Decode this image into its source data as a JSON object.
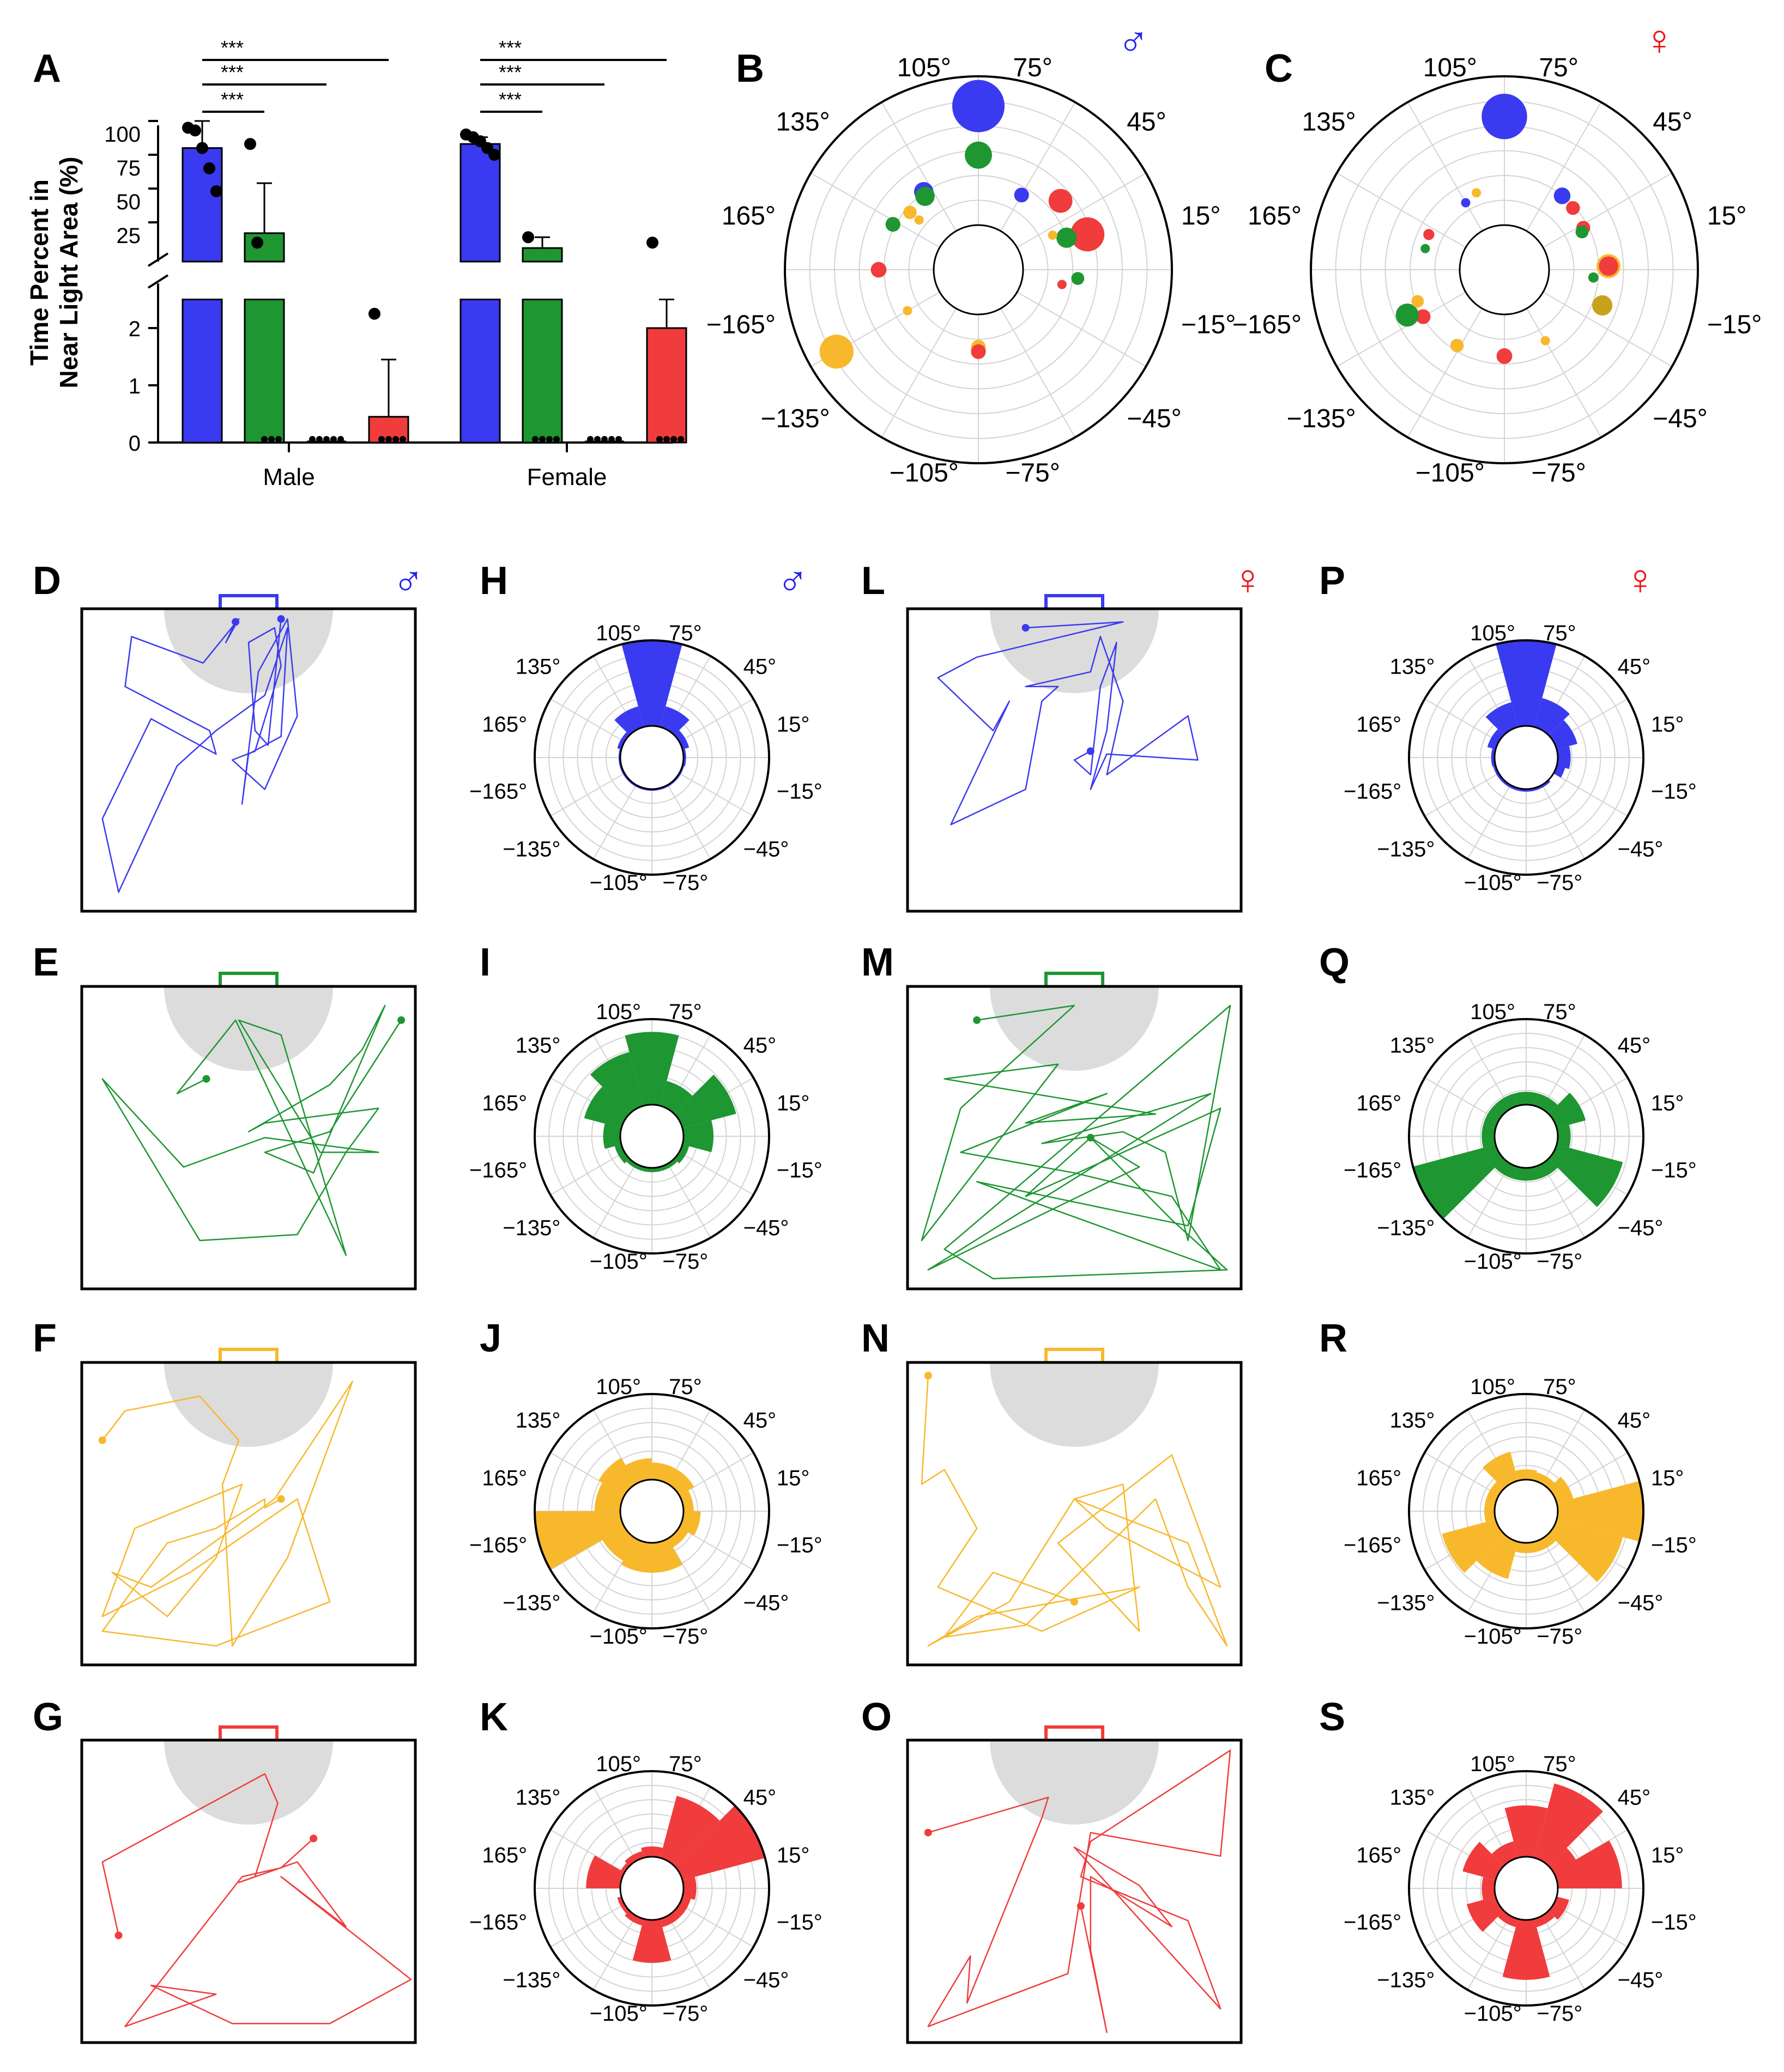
{
  "panel_letters": [
    "A",
    "B",
    "C",
    "D",
    "E",
    "F",
    "G",
    "H",
    "I",
    "J",
    "K",
    "L",
    "M",
    "N",
    "O",
    "P",
    "Q",
    "R",
    "S"
  ],
  "sex_symbols": {
    "male": "♂",
    "female": "♀"
  },
  "colors": {
    "blue": "#3a3af0",
    "green": "#1e9632",
    "orange": "#f8b82c",
    "red": "#f03c3c",
    "gold": "#c9a21c",
    "black": "#000000",
    "grid": "#d4d4d4",
    "shade": "#dcdcdc"
  },
  "polar_labels": [
    "105°",
    "75°",
    "45°",
    "15°",
    "−15°",
    "−45°",
    "−75°",
    "−105°",
    "−135°",
    "−165°",
    "165°",
    "135°"
  ],
  "sig_label": "***",
  "chart_data": [
    {
      "panel": "A",
      "type": "bar",
      "ylabel": "Time Percent in Near Light Area (%)",
      "ylabel_lines": [
        "Time Percent in",
        "Near Light Area (%)"
      ],
      "groups": [
        "Male",
        "Female"
      ],
      "y_upper_ticks": [
        "25",
        "50",
        "75",
        "100"
      ],
      "y_lower_ticks": [
        "0",
        "1",
        "2"
      ],
      "ylim_lower": [
        0,
        2.5
      ],
      "ylim_upper": [
        0,
        105
      ],
      "series": [
        {
          "name": "blue",
          "color": "blue",
          "values": [
            80,
            83
          ],
          "err": [
            20,
            5
          ],
          "points": [
            [
              95,
              93,
              80,
              65,
              48
            ],
            [
              90,
              88,
              85,
              80,
              75
            ]
          ]
        },
        {
          "name": "green",
          "color": "green",
          "values": [
            17,
            6
          ],
          "err": [
            37,
            8
          ],
          "points": [
            [
              83,
              10,
              0,
              0,
              0
            ],
            [
              14,
              0,
              0,
              0,
              0
            ]
          ]
        },
        {
          "name": "orange",
          "color": "orange",
          "values": [
            0,
            0
          ],
          "err": [
            0,
            0
          ],
          "points": [
            [
              0,
              0,
              0,
              0,
              0
            ],
            [
              0,
              0,
              0,
              0,
              0
            ]
          ]
        },
        {
          "name": "red",
          "color": "red",
          "values": [
            0.45,
            2.0
          ],
          "err": [
            1.0,
            0.5
          ],
          "points": [
            [
              2.25,
              0,
              0,
              0,
              0
            ],
            [
              10,
              0,
              0,
              0,
              0
            ]
          ]
        }
      ],
      "significance": [
        {
          "group": 0,
          "from": 0,
          "to": 1,
          "label": "***"
        },
        {
          "group": 0,
          "from": 0,
          "to": 2,
          "label": "***"
        },
        {
          "group": 0,
          "from": 0,
          "to": 3,
          "label": "***"
        },
        {
          "group": 1,
          "from": 0,
          "to": 1,
          "label": "***"
        },
        {
          "group": 1,
          "from": 0,
          "to": 2,
          "label": "***"
        },
        {
          "group": 1,
          "from": 0,
          "to": 3,
          "label": "***"
        }
      ]
    },
    {
      "panel": "B",
      "sex": "male",
      "type": "scatter",
      "description": "polar bubble plot of heading angle vs distance, bubble size = time",
      "points": [
        {
          "angle": 90,
          "r": 0.8,
          "size": 1.0,
          "color": "blue"
        },
        {
          "angle": 90,
          "r": 0.47,
          "size": 0.45,
          "color": "green"
        },
        {
          "angle": 40,
          "r": 0.42,
          "size": 0.38,
          "color": "red"
        },
        {
          "angle": 18,
          "r": 0.47,
          "size": 0.6,
          "color": "red"
        },
        {
          "angle": 20,
          "r": 0.33,
          "size": 0.3,
          "color": "green"
        },
        {
          "angle": 60,
          "r": 0.28,
          "size": 0.18,
          "color": "blue"
        },
        {
          "angle": 125,
          "r": 0.34,
          "size": 0.28,
          "color": "blue"
        },
        {
          "angle": 126,
          "r": 0.31,
          "size": 0.28,
          "color": "green"
        },
        {
          "angle": 140,
          "r": 0.3,
          "size": 0.15,
          "color": "orange"
        },
        {
          "angle": 152,
          "r": 0.35,
          "size": 0.18,
          "color": "green"
        },
        {
          "angle": 180,
          "r": 0.37,
          "size": 0.2,
          "color": "red"
        },
        {
          "angle": -150,
          "r": 0.8,
          "size": 0.6,
          "color": "orange"
        },
        {
          "angle": -90,
          "r": 0.22,
          "size": 0.18,
          "color": "orange"
        },
        {
          "angle": -90,
          "r": 0.25,
          "size": 0.18,
          "color": "red"
        },
        {
          "angle": -5,
          "r": 0.37,
          "size": 0.14,
          "color": "green"
        },
        {
          "angle": 25,
          "r": 0.25,
          "size": 0.06,
          "color": "orange"
        },
        {
          "angle": -10,
          "r": 0.27,
          "size": 0.06,
          "color": "red"
        },
        {
          "angle": 140,
          "r": 0.22,
          "size": 0.06,
          "color": "orange"
        },
        {
          "angle": -150,
          "r": 0.25,
          "size": 0.06,
          "color": "orange"
        }
      ]
    },
    {
      "panel": "C",
      "sex": "female",
      "type": "scatter",
      "description": "polar bubble plot of heading angle vs distance, bubble size = time",
      "points": [
        {
          "angle": 90,
          "r": 0.73,
          "size": 0.85,
          "color": "blue"
        },
        {
          "angle": 52,
          "r": 0.33,
          "size": 0.22,
          "color": "blue"
        },
        {
          "angle": 42,
          "r": 0.32,
          "size": 0.16,
          "color": "red"
        },
        {
          "angle": 28,
          "r": 0.3,
          "size": 0.16,
          "color": "red"
        },
        {
          "angle": 26,
          "r": 0.28,
          "size": 0.14,
          "color": "green"
        },
        {
          "angle": 2,
          "r": 0.4,
          "size": 0.38,
          "color": "orange"
        },
        {
          "angle": 2,
          "r": 0.4,
          "size": 0.28,
          "color": "red"
        },
        {
          "angle": -20,
          "r": 0.4,
          "size": 0.3,
          "color": "gold"
        },
        {
          "angle": -90,
          "r": 0.28,
          "size": 0.2,
          "color": "red"
        },
        {
          "angle": -122,
          "r": 0.3,
          "size": 0.15,
          "color": "orange"
        },
        {
          "angle": -150,
          "r": 0.33,
          "size": 0.18,
          "color": "red"
        },
        {
          "angle": -155,
          "r": 0.42,
          "size": 0.36,
          "color": "green"
        },
        {
          "angle": -160,
          "r": 0.32,
          "size": 0.13,
          "color": "orange"
        },
        {
          "angle": 155,
          "r": 0.26,
          "size": 0.1,
          "color": "red"
        },
        {
          "angle": 120,
          "r": 0.22,
          "size": 0.06,
          "color": "blue"
        },
        {
          "angle": 110,
          "r": 0.25,
          "size": 0.06,
          "color": "orange"
        },
        {
          "angle": 165,
          "r": 0.25,
          "size": 0.06,
          "color": "green"
        },
        {
          "angle": -5,
          "r": 0.3,
          "size": 0.08,
          "color": "green"
        },
        {
          "angle": -60,
          "r": 0.25,
          "size": 0.06,
          "color": "orange"
        }
      ]
    },
    {
      "panel": "H",
      "sex": "male",
      "type": "bar",
      "subtype": "polar-rose",
      "color": "blue",
      "centers": [
        90,
        60,
        120,
        30,
        150,
        0,
        180,
        -30,
        -60,
        -90,
        -120,
        -150
      ],
      "values": [
        1.0,
        0.25,
        0.25,
        0.08,
        0.05,
        0.03,
        0.02,
        0.02,
        0.02,
        0.02,
        0.02,
        0.02
      ]
    },
    {
      "panel": "I",
      "sex": "male",
      "type": "bar",
      "subtype": "polar-rose",
      "color": "green",
      "centers": [
        90,
        120,
        150,
        60,
        30,
        0,
        180,
        -30,
        -60,
        -90,
        -120,
        -150
      ],
      "values": [
        0.85,
        0.65,
        0.45,
        0.3,
        0.65,
        0.35,
        0.2,
        0.08,
        0.05,
        0.05,
        0.05,
        0.08
      ]
    },
    {
      "panel": "J",
      "sex": "male",
      "type": "bar",
      "subtype": "polar-rose",
      "color": "orange",
      "centers": [
        -165,
        -135,
        165,
        135,
        105,
        75,
        45,
        15,
        -15,
        -45,
        -75,
        -105
      ],
      "values": [
        1.0,
        0.3,
        0.3,
        0.35,
        0.25,
        0.2,
        0.2,
        0.12,
        0.2,
        0.12,
        0.35,
        0.35
      ]
    },
    {
      "panel": "K",
      "sex": "male",
      "type": "bar",
      "subtype": "polar-rose",
      "color": "red",
      "centers": [
        30,
        60,
        165,
        -90,
        0,
        90,
        120,
        -60,
        -120,
        -150,
        -30,
        135
      ],
      "values": [
        1.0,
        0.75,
        0.4,
        0.5,
        0.15,
        0.12,
        0.08,
        0.1,
        0.08,
        0.05,
        0.1,
        0.05
      ]
    },
    {
      "panel": "P",
      "sex": "female",
      "type": "bar",
      "subtype": "polar-rose",
      "color": "blue",
      "centers": [
        90,
        60,
        120,
        30,
        150,
        0,
        -15,
        180,
        -60,
        -90,
        -120,
        -150
      ],
      "values": [
        1.0,
        0.35,
        0.3,
        0.25,
        0.1,
        0.15,
        0.1,
        0.04,
        0.03,
        0.03,
        0.03,
        0.03
      ]
    },
    {
      "panel": "Q",
      "sex": "female",
      "type": "bar",
      "subtype": "polar-rose",
      "color": "green",
      "centers": [
        -150,
        -30,
        30,
        90,
        150,
        120,
        60,
        0,
        180,
        -60,
        -90,
        -120
      ],
      "values": [
        1.0,
        0.8,
        0.35,
        0.15,
        0.15,
        0.15,
        0.15,
        0.15,
        0.15,
        0.15,
        0.15,
        0.15
      ]
    },
    {
      "panel": "R",
      "sex": "female",
      "type": "bar",
      "subtype": "polar-rose",
      "color": "orange",
      "centers": [
        0,
        -30,
        -150,
        -120,
        120,
        30,
        90,
        60,
        150,
        180,
        -60,
        -90
      ],
      "values": [
        1.0,
        0.8,
        0.65,
        0.45,
        0.35,
        0.2,
        0.12,
        0.1,
        0.12,
        0.12,
        0.12,
        0.12
      ]
    },
    {
      "panel": "S",
      "sex": "female",
      "type": "bar",
      "subtype": "polar-rose",
      "color": "red",
      "centers": [
        60,
        90,
        15,
        -90,
        150,
        -150,
        120,
        30,
        -30,
        -60,
        -120,
        180
      ],
      "values": [
        0.9,
        0.6,
        0.75,
        0.7,
        0.4,
        0.35,
        0.2,
        0.3,
        0.15,
        0.1,
        0.1,
        0.15
      ]
    },
    {
      "panel": "D",
      "sex": "male",
      "type": "line",
      "subtype": "trajectory",
      "color": "blue",
      "x": [
        0.46,
        0.43,
        0.47,
        0.36,
        0.14,
        0.12,
        0.38,
        0.4,
        0.2,
        0.05,
        0.1,
        0.28,
        0.4,
        0.55,
        0.62,
        0.6,
        0.5,
        0.48,
        0.53,
        0.62,
        0.65,
        0.55,
        0.45,
        0.52,
        0.6,
        0.58,
        0.5,
        0.52,
        0.56,
        0.6
      ],
      "y": [
        0.03,
        0.1,
        0.02,
        0.17,
        0.08,
        0.25,
        0.4,
        0.48,
        0.36,
        0.7,
        0.95,
        0.52,
        0.4,
        0.28,
        0.05,
        0.42,
        0.48,
        0.65,
        0.2,
        0.02,
        0.35,
        0.6,
        0.5,
        0.47,
        0.18,
        0.05,
        0.1,
        0.4,
        0.45,
        0.02
      ]
    },
    {
      "panel": "E",
      "sex": "male",
      "type": "line",
      "subtype": "trajectory",
      "color": "green",
      "x": [
        0.37,
        0.28,
        0.46,
        0.8,
        0.6,
        0.47,
        0.72,
        0.9,
        0.55,
        0.3,
        0.05,
        0.35,
        0.65,
        0.8,
        0.9,
        0.55,
        0.5,
        0.75,
        0.85,
        0.92,
        0.7,
        0.55,
        0.75,
        0.97
      ],
      "y": [
        0.3,
        0.35,
        0.1,
        0.9,
        0.15,
        0.1,
        0.55,
        0.55,
        0.5,
        0.6,
        0.3,
        0.85,
        0.83,
        0.55,
        0.4,
        0.45,
        0.48,
        0.32,
        0.2,
        0.05,
        0.62,
        0.55,
        0.48,
        0.1
      ]
    },
    {
      "panel": "F",
      "sex": "male",
      "type": "line",
      "subtype": "trajectory",
      "color": "orange",
      "x": [
        0.05,
        0.12,
        0.35,
        0.47,
        0.42,
        0.45,
        0.62,
        0.82,
        0.58,
        0.2,
        0.08,
        0.25,
        0.4,
        0.48,
        0.15,
        0.05,
        0.32,
        0.65,
        0.75,
        0.4,
        0.05,
        0.25,
        0.4,
        0.55,
        0.55,
        0.6
      ],
      "y": [
        0.25,
        0.15,
        0.1,
        0.25,
        0.4,
        0.95,
        0.65,
        0.05,
        0.45,
        0.75,
        0.7,
        0.85,
        0.65,
        0.4,
        0.55,
        0.85,
        0.7,
        0.45,
        0.8,
        0.95,
        0.9,
        0.6,
        0.55,
        0.45,
        0.48,
        0.45
      ]
    },
    {
      "panel": "G",
      "sex": "male",
      "type": "line",
      "subtype": "trajectory",
      "color": "red",
      "x": [
        0.1,
        0.05,
        0.55,
        0.59,
        0.52,
        0.47,
        0.65,
        0.8,
        0.6,
        1.0,
        0.75,
        0.45,
        0.2,
        0.4,
        0.12,
        0.48,
        0.6,
        0.7
      ],
      "y": [
        0.65,
        0.4,
        0.1,
        0.2,
        0.45,
        0.47,
        0.4,
        0.62,
        0.45,
        0.8,
        0.95,
        0.95,
        0.82,
        0.85,
        0.96,
        0.45,
        0.42,
        0.32
      ]
    },
    {
      "panel": "L",
      "sex": "female",
      "type": "line",
      "subtype": "trajectory",
      "color": "blue",
      "x": [
        0.35,
        0.65,
        0.2,
        0.08,
        0.25,
        0.3,
        0.12,
        0.35,
        0.4,
        0.45,
        0.35,
        0.55,
        0.58,
        0.65,
        0.6,
        0.85,
        0.88,
        0.6,
        0.55,
        0.6,
        0.63,
        0.58,
        0.55,
        0.5,
        0.55
      ],
      "y": [
        0.05,
        0.03,
        0.15,
        0.22,
        0.4,
        0.3,
        0.72,
        0.6,
        0.3,
        0.25,
        0.25,
        0.2,
        0.08,
        0.3,
        0.55,
        0.35,
        0.5,
        0.48,
        0.6,
        0.4,
        0.1,
        0.25,
        0.55,
        0.5,
        0.47
      ]
    },
    {
      "panel": "M",
      "sex": "female",
      "type": "line",
      "subtype": "trajectory",
      "color": "green",
      "x": [
        0.2,
        0.5,
        0.15,
        0.03,
        0.45,
        0.1,
        0.75,
        0.35,
        0.6,
        0.15,
        0.5,
        0.8,
        0.95,
        0.2,
        0.85,
        0.95,
        0.35,
        0.55,
        0.7,
        0.05,
        0.92,
        0.4,
        0.65,
        0.78,
        0.85,
        0.98,
        0.1,
        0.25,
        0.97,
        0.8,
        0.55
      ],
      "y": [
        0.1,
        0.05,
        0.4,
        0.85,
        0.25,
        0.3,
        0.42,
        0.45,
        0.35,
        0.55,
        0.62,
        0.7,
        0.95,
        0.65,
        0.8,
        0.4,
        0.7,
        0.5,
        0.6,
        0.95,
        0.35,
        0.52,
        0.48,
        0.55,
        0.85,
        0.05,
        0.88,
        0.98,
        0.95,
        0.78,
        0.5
      ]
    },
    {
      "panel": "N",
      "sex": "female",
      "type": "line",
      "subtype": "trajectory",
      "color": "orange",
      "x": [
        0.05,
        0.03,
        0.1,
        0.2,
        0.08,
        0.4,
        0.7,
        0.2,
        0.05,
        0.3,
        0.5,
        0.65,
        0.7,
        0.45,
        0.8,
        0.95,
        0.6,
        0.5,
        0.85,
        0.97,
        0.85,
        0.75,
        0.35,
        0.1,
        0.25,
        0.5
      ],
      "y": [
        0.03,
        0.4,
        0.35,
        0.55,
        0.75,
        0.9,
        0.75,
        0.85,
        0.95,
        0.8,
        0.45,
        0.4,
        0.9,
        0.6,
        0.3,
        0.75,
        0.55,
        0.45,
        0.6,
        0.95,
        0.75,
        0.45,
        0.88,
        0.92,
        0.7,
        0.8
      ]
    },
    {
      "panel": "O",
      "sex": "female",
      "type": "line",
      "subtype": "trajectory",
      "color": "red",
      "x": [
        0.05,
        0.42,
        0.4,
        0.17,
        0.18,
        0.05,
        0.48,
        0.55,
        0.95,
        0.98,
        0.55,
        0.52,
        0.85,
        0.95,
        0.5,
        0.7,
        0.8,
        0.55,
        0.55,
        0.6,
        0.52
      ],
      "y": [
        0.3,
        0.18,
        0.25,
        0.88,
        0.72,
        0.96,
        0.78,
        0.3,
        0.38,
        0.02,
        0.33,
        0.45,
        0.6,
        0.9,
        0.35,
        0.48,
        0.62,
        0.45,
        0.7,
        0.98,
        0.55
      ]
    }
  ]
}
